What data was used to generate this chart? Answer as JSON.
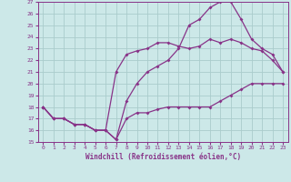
{
  "xlabel": "Windchill (Refroidissement éolien,°C)",
  "bg_color": "#cce8e8",
  "grid_color": "#aacccc",
  "line_color": "#883388",
  "xlim": [
    -0.5,
    23.5
  ],
  "ylim": [
    15,
    27
  ],
  "xticks": [
    0,
    1,
    2,
    3,
    4,
    5,
    6,
    7,
    8,
    9,
    10,
    11,
    12,
    13,
    14,
    15,
    16,
    17,
    18,
    19,
    20,
    21,
    22,
    23
  ],
  "yticks": [
    15,
    16,
    17,
    18,
    19,
    20,
    21,
    22,
    23,
    24,
    25,
    26,
    27
  ],
  "line1_x": [
    0,
    1,
    2,
    3,
    4,
    5,
    6,
    7,
    8,
    9,
    10,
    11,
    12,
    13,
    14,
    15,
    16,
    17,
    18,
    19,
    20,
    21,
    22,
    23
  ],
  "line1_y": [
    18,
    17,
    17,
    16.5,
    16.5,
    16,
    16,
    15.2,
    17,
    17.5,
    17.5,
    17.8,
    18,
    18,
    18,
    18,
    18,
    18.5,
    19,
    19.5,
    20,
    20,
    20,
    20
  ],
  "line2_x": [
    0,
    1,
    2,
    3,
    4,
    5,
    6,
    7,
    8,
    9,
    10,
    11,
    12,
    13,
    14,
    15,
    16,
    17,
    18,
    19,
    20,
    21,
    22,
    23
  ],
  "line2_y": [
    18,
    17,
    17,
    16.5,
    16.5,
    16,
    16,
    21,
    22.5,
    22.8,
    23,
    23.5,
    23.5,
    23.2,
    23,
    23.2,
    23.8,
    23.5,
    23.8,
    23.5,
    23,
    22.8,
    22,
    21
  ],
  "line3_x": [
    0,
    1,
    2,
    3,
    4,
    5,
    6,
    7,
    8,
    9,
    10,
    11,
    12,
    13,
    14,
    15,
    16,
    17,
    18,
    19,
    20,
    21,
    22,
    23
  ],
  "line3_y": [
    18,
    17,
    17,
    16.5,
    16.5,
    16,
    16,
    15.2,
    18.5,
    20,
    21,
    21.5,
    22,
    23,
    25,
    25.5,
    26.5,
    27,
    27,
    25.5,
    23.8,
    23,
    22.5,
    21
  ]
}
